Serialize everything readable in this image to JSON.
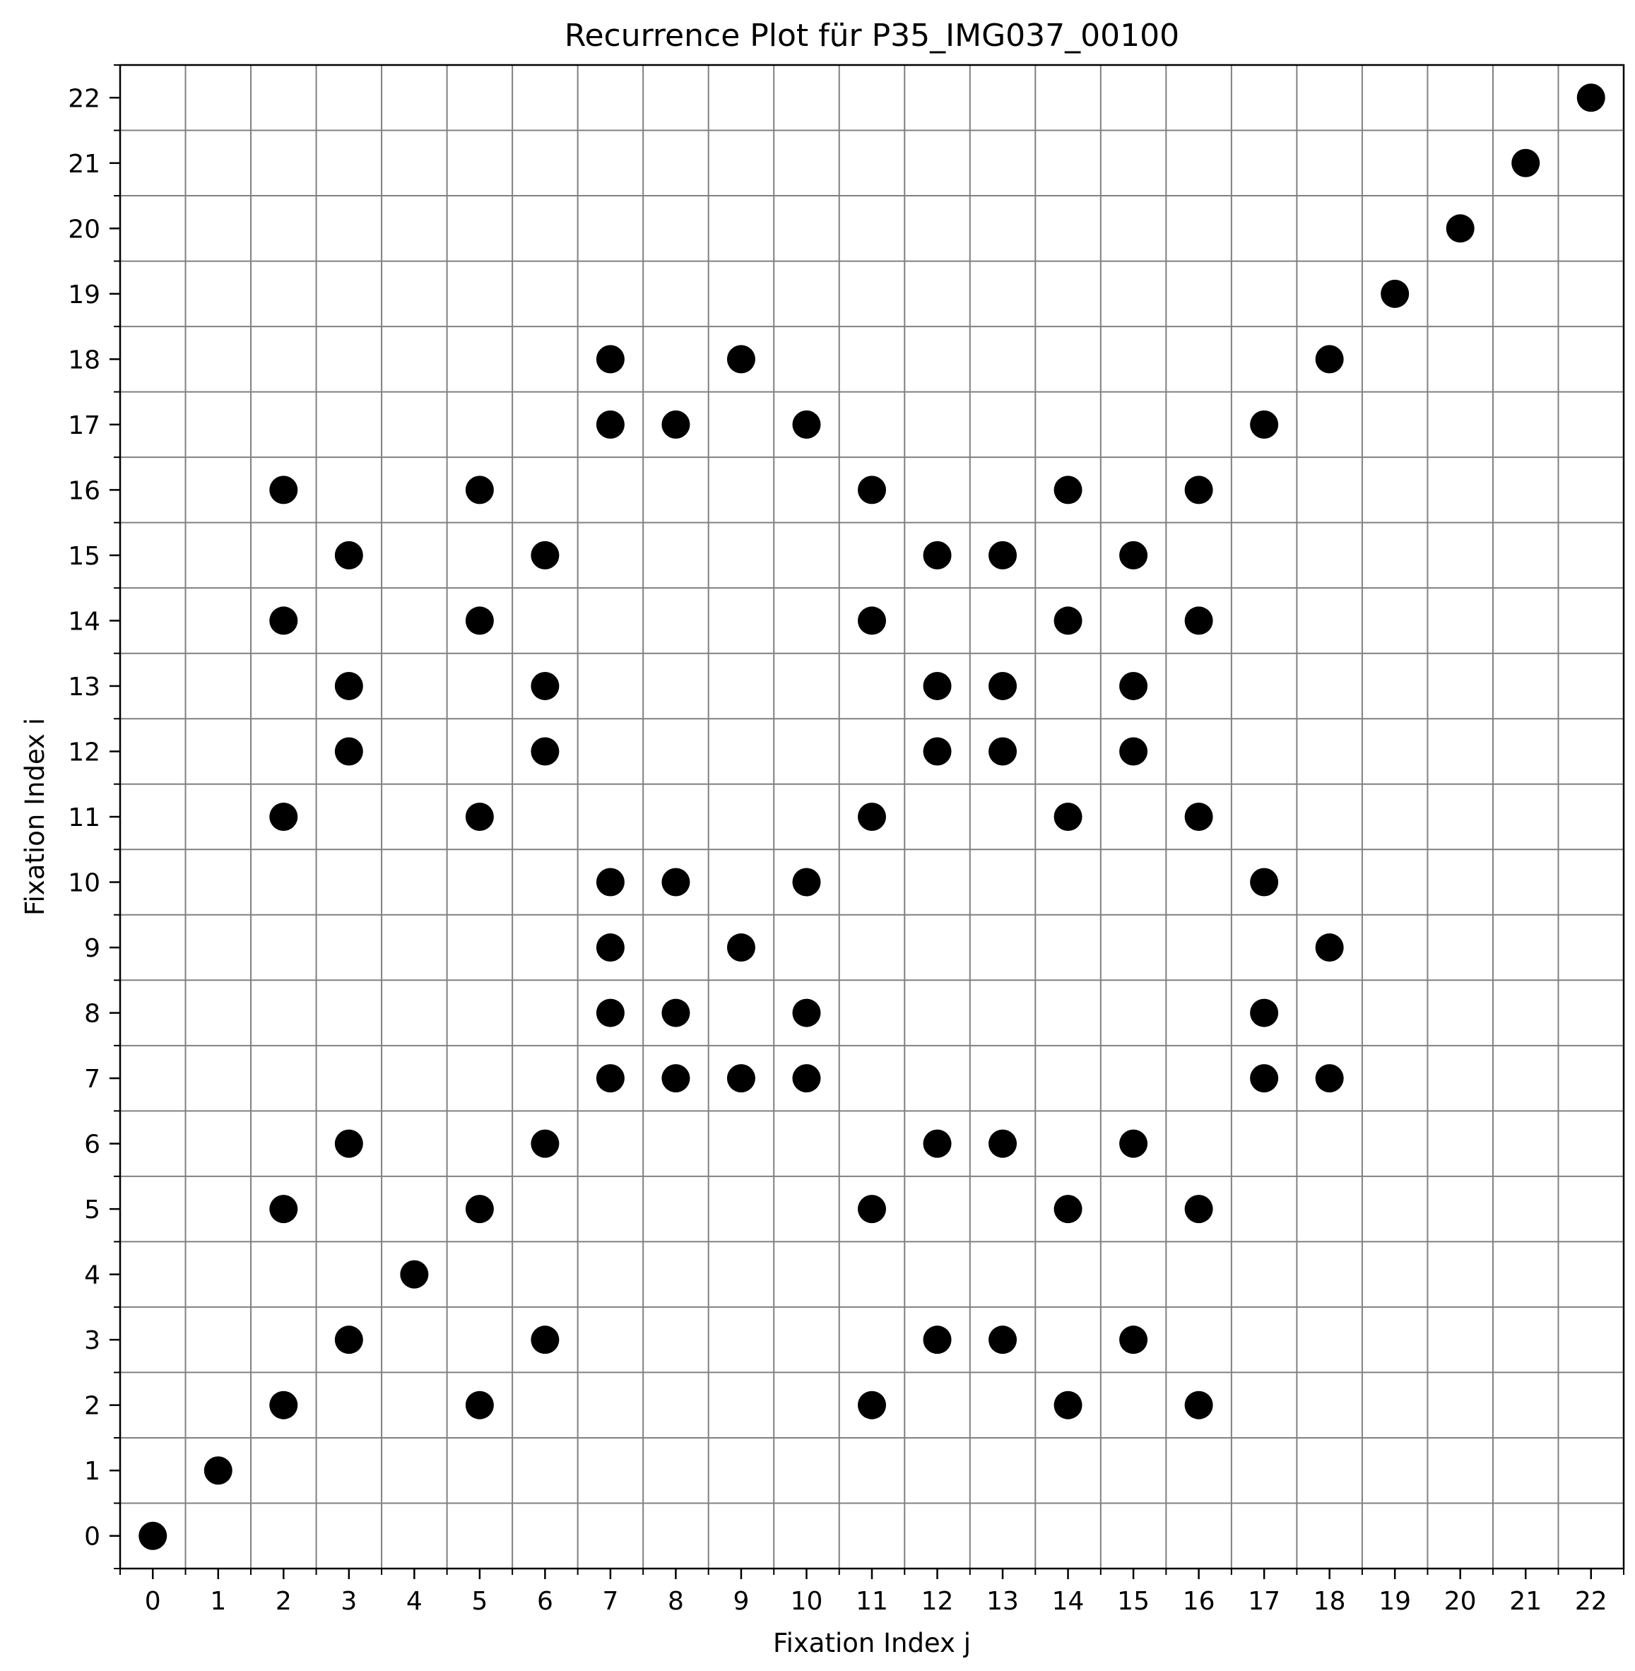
{
  "chart_data": {
    "type": "scatter",
    "title": "Recurrence Plot für P35_IMG037_00100",
    "xlabel": "Fixation Index j",
    "ylabel": "Fixation Index i",
    "xlim": [
      -0.5,
      22.5
    ],
    "ylim": [
      -0.5,
      22.5
    ],
    "xticks": [
      "0",
      "1",
      "2",
      "3",
      "4",
      "5",
      "6",
      "7",
      "8",
      "9",
      "10",
      "11",
      "12",
      "13",
      "14",
      "15",
      "16",
      "17",
      "18",
      "19",
      "20",
      "21",
      "22"
    ],
    "yticks": [
      "0",
      "1",
      "2",
      "3",
      "4",
      "5",
      "6",
      "7",
      "8",
      "9",
      "10",
      "11",
      "12",
      "13",
      "14",
      "15",
      "16",
      "17",
      "18",
      "19",
      "20",
      "21",
      "22"
    ],
    "grid": true,
    "marker_color": "#000000",
    "points": [
      [
        0,
        0
      ],
      [
        1,
        1
      ],
      [
        2,
        2
      ],
      [
        5,
        2
      ],
      [
        11,
        2
      ],
      [
        14,
        2
      ],
      [
        16,
        2
      ],
      [
        3,
        3
      ],
      [
        6,
        3
      ],
      [
        12,
        3
      ],
      [
        13,
        3
      ],
      [
        15,
        3
      ],
      [
        4,
        4
      ],
      [
        2,
        5
      ],
      [
        5,
        5
      ],
      [
        11,
        5
      ],
      [
        14,
        5
      ],
      [
        16,
        5
      ],
      [
        3,
        6
      ],
      [
        6,
        6
      ],
      [
        12,
        6
      ],
      [
        13,
        6
      ],
      [
        15,
        6
      ],
      [
        7,
        7
      ],
      [
        8,
        7
      ],
      [
        9,
        7
      ],
      [
        10,
        7
      ],
      [
        17,
        7
      ],
      [
        18,
        7
      ],
      [
        7,
        8
      ],
      [
        8,
        8
      ],
      [
        10,
        8
      ],
      [
        17,
        8
      ],
      [
        7,
        9
      ],
      [
        9,
        9
      ],
      [
        18,
        9
      ],
      [
        7,
        10
      ],
      [
        8,
        10
      ],
      [
        10,
        10
      ],
      [
        17,
        10
      ],
      [
        2,
        11
      ],
      [
        5,
        11
      ],
      [
        11,
        11
      ],
      [
        14,
        11
      ],
      [
        16,
        11
      ],
      [
        3,
        12
      ],
      [
        6,
        12
      ],
      [
        12,
        12
      ],
      [
        13,
        12
      ],
      [
        15,
        12
      ],
      [
        3,
        13
      ],
      [
        6,
        13
      ],
      [
        12,
        13
      ],
      [
        13,
        13
      ],
      [
        15,
        13
      ],
      [
        2,
        14
      ],
      [
        5,
        14
      ],
      [
        11,
        14
      ],
      [
        14,
        14
      ],
      [
        16,
        14
      ],
      [
        3,
        15
      ],
      [
        6,
        15
      ],
      [
        12,
        15
      ],
      [
        13,
        15
      ],
      [
        15,
        15
      ],
      [
        2,
        16
      ],
      [
        5,
        16
      ],
      [
        11,
        16
      ],
      [
        14,
        16
      ],
      [
        16,
        16
      ],
      [
        7,
        17
      ],
      [
        8,
        17
      ],
      [
        10,
        17
      ],
      [
        17,
        17
      ],
      [
        7,
        18
      ],
      [
        9,
        18
      ],
      [
        18,
        18
      ],
      [
        19,
        19
      ],
      [
        20,
        20
      ],
      [
        21,
        21
      ],
      [
        22,
        22
      ]
    ]
  }
}
